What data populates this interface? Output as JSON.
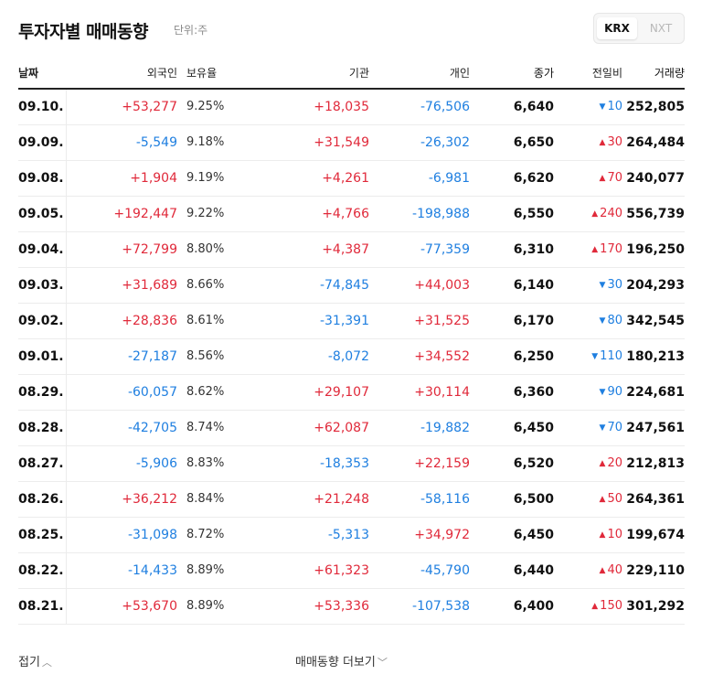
{
  "header": {
    "title": "투자자별 매매동향",
    "unit": "단위:주",
    "market_tabs": [
      "KRX",
      "NXT"
    ],
    "selected_tab": "KRX"
  },
  "table": {
    "columns": {
      "date": "날짜",
      "foreign": "외국인",
      "holding": "보유율",
      "institution": "기관",
      "individual": "개인",
      "close": "종가",
      "change": "전일비",
      "volume": "거래량"
    },
    "rows": [
      {
        "date": "09.10.",
        "foreign": "+53,277",
        "holding": "9.25%",
        "institution": "+18,035",
        "individual": "-76,506",
        "close": "6,640",
        "change": "10",
        "dir": "down",
        "volume": "252,805"
      },
      {
        "date": "09.09.",
        "foreign": "-5,549",
        "holding": "9.18%",
        "institution": "+31,549",
        "individual": "-26,302",
        "close": "6,650",
        "change": "30",
        "dir": "up",
        "volume": "264,484"
      },
      {
        "date": "09.08.",
        "foreign": "+1,904",
        "holding": "9.19%",
        "institution": "+4,261",
        "individual": "-6,981",
        "close": "6,620",
        "change": "70",
        "dir": "up",
        "volume": "240,077"
      },
      {
        "date": "09.05.",
        "foreign": "+192,447",
        "holding": "9.22%",
        "institution": "+4,766",
        "individual": "-198,988",
        "close": "6,550",
        "change": "240",
        "dir": "up",
        "volume": "556,739"
      },
      {
        "date": "09.04.",
        "foreign": "+72,799",
        "holding": "8.80%",
        "institution": "+4,387",
        "individual": "-77,359",
        "close": "6,310",
        "change": "170",
        "dir": "up",
        "volume": "196,250"
      },
      {
        "date": "09.03.",
        "foreign": "+31,689",
        "holding": "8.66%",
        "institution": "-74,845",
        "individual": "+44,003",
        "close": "6,140",
        "change": "30",
        "dir": "down",
        "volume": "204,293"
      },
      {
        "date": "09.02.",
        "foreign": "+28,836",
        "holding": "8.61%",
        "institution": "-31,391",
        "individual": "+31,525",
        "close": "6,170",
        "change": "80",
        "dir": "down",
        "volume": "342,545"
      },
      {
        "date": "09.01.",
        "foreign": "-27,187",
        "holding": "8.56%",
        "institution": "-8,072",
        "individual": "+34,552",
        "close": "6,250",
        "change": "110",
        "dir": "down",
        "volume": "180,213"
      },
      {
        "date": "08.29.",
        "foreign": "-60,057",
        "holding": "8.62%",
        "institution": "+29,107",
        "individual": "+30,114",
        "close": "6,360",
        "change": "90",
        "dir": "down",
        "volume": "224,681"
      },
      {
        "date": "08.28.",
        "foreign": "-42,705",
        "holding": "8.74%",
        "institution": "+62,087",
        "individual": "-19,882",
        "close": "6,450",
        "change": "70",
        "dir": "down",
        "volume": "247,561"
      },
      {
        "date": "08.27.",
        "foreign": "-5,906",
        "holding": "8.83%",
        "institution": "-18,353",
        "individual": "+22,159",
        "close": "6,520",
        "change": "20",
        "dir": "up",
        "volume": "212,813"
      },
      {
        "date": "08.26.",
        "foreign": "+36,212",
        "holding": "8.84%",
        "institution": "+21,248",
        "individual": "-58,116",
        "close": "6,500",
        "change": "50",
        "dir": "up",
        "volume": "264,361"
      },
      {
        "date": "08.25.",
        "foreign": "-31,098",
        "holding": "8.72%",
        "institution": "-5,313",
        "individual": "+34,972",
        "close": "6,450",
        "change": "10",
        "dir": "up",
        "volume": "199,674"
      },
      {
        "date": "08.22.",
        "foreign": "-14,433",
        "holding": "8.89%",
        "institution": "+61,323",
        "individual": "-45,790",
        "close": "6,440",
        "change": "40",
        "dir": "up",
        "volume": "229,110"
      },
      {
        "date": "08.21.",
        "foreign": "+53,670",
        "holding": "8.89%",
        "institution": "+53,336",
        "individual": "-107,538",
        "close": "6,400",
        "change": "150",
        "dir": "up",
        "volume": "301,292"
      }
    ]
  },
  "footer": {
    "fold_label": "접기",
    "more_label": "매매동향 더보기"
  },
  "colors": {
    "positive": "#e0293a",
    "negative": "#1f7fe0"
  },
  "icons": {
    "up": "triangle-up-icon",
    "down": "triangle-down-icon",
    "fold": "chevron-up-icon",
    "more": "chevron-down-icon"
  }
}
